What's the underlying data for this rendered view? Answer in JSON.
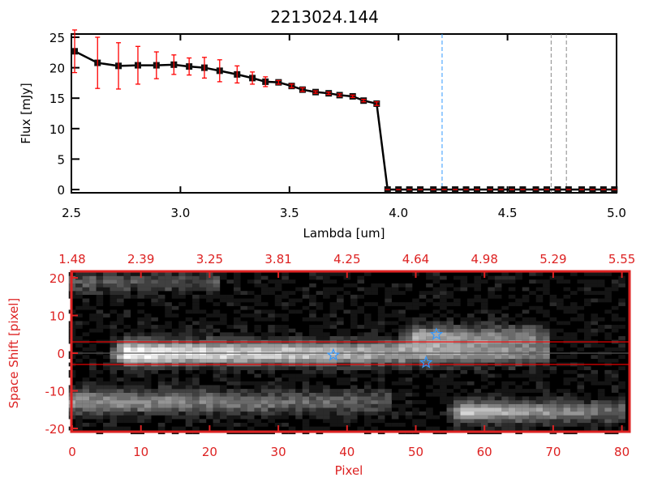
{
  "chart_data": [
    {
      "type": "line",
      "title": "2213024.144",
      "xlabel": "Lambda [um]",
      "ylabel": "Flux [mJy]",
      "xlim": [
        2.5,
        5.0
      ],
      "ylim": [
        -1,
        26
      ],
      "xticks": [
        "2.5",
        "3.0",
        "3.5",
        "4.0",
        "4.5",
        "5.0"
      ],
      "xtick_values": [
        2.5,
        3.0,
        3.5,
        4.0,
        4.5,
        5.0
      ],
      "yticks": [
        "0",
        "5",
        "10",
        "15",
        "20",
        "25"
      ],
      "ytick_values": [
        0,
        5,
        10,
        15,
        20,
        25
      ],
      "series": [
        {
          "name": "flux",
          "x": [
            2.515,
            2.62,
            2.716,
            2.805,
            2.89,
            2.97,
            3.04,
            3.11,
            3.18,
            3.26,
            3.33,
            3.39,
            3.45,
            3.51,
            3.56,
            3.62,
            3.68,
            3.73,
            3.79,
            3.84,
            3.9,
            3.95,
            4.0,
            4.05,
            4.1,
            4.16,
            4.21,
            4.26,
            4.31,
            4.36,
            4.42,
            4.47,
            4.52,
            4.57,
            4.63,
            4.68,
            4.73,
            4.78,
            4.84,
            4.89,
            4.94,
            4.99
          ],
          "y": [
            22.7,
            20.8,
            20.3,
            20.4,
            20.4,
            20.5,
            20.2,
            20.0,
            19.5,
            18.9,
            18.3,
            17.7,
            17.6,
            17.0,
            16.4,
            16.0,
            15.8,
            15.5,
            15.3,
            14.6,
            14.1,
            0,
            0,
            0,
            0,
            0,
            0,
            0,
            0,
            0,
            0,
            0,
            0,
            0,
            0,
            0,
            0,
            0,
            0,
            0,
            0,
            0
          ],
          "err": [
            3.5,
            4.2,
            3.8,
            3.1,
            2.2,
            1.6,
            1.4,
            1.7,
            1.8,
            1.4,
            1.0,
            0.8,
            0.3,
            0.3,
            0.3,
            0.2,
            0.2,
            0.2,
            0.2,
            0.2,
            0.3,
            0,
            0,
            0,
            0,
            0,
            0,
            0,
            0,
            0,
            0,
            0,
            0,
            0,
            0,
            0,
            0,
            0,
            0,
            0,
            0,
            0
          ]
        }
      ],
      "vlines": [
        {
          "x": 4.2,
          "color": "#3399ff",
          "style": "dashed"
        },
        {
          "x": 4.7,
          "color": "#888888",
          "style": "dashed"
        },
        {
          "x": 4.77,
          "color": "#888888",
          "style": "dashed"
        }
      ],
      "hline": {
        "y": 0,
        "from": 4.0,
        "to": 5.0,
        "color": "#ff0000",
        "style": "dashed"
      }
    },
    {
      "type": "heatmap",
      "xlabel": "Pixel",
      "ylabel": "Space Shift [pixel]",
      "xlim": [
        0,
        81
      ],
      "ylim": [
        -21,
        21
      ],
      "xticks": [
        "0",
        "10",
        "20",
        "30",
        "40",
        "50",
        "60",
        "70",
        "80"
      ],
      "xtick_values": [
        0,
        10,
        20,
        30,
        40,
        50,
        60,
        70,
        80
      ],
      "yticks": [
        "20",
        "10",
        "0",
        "-10",
        "-20"
      ],
      "ytick_values": [
        20,
        10,
        0,
        -10,
        -20
      ],
      "top_axis_labels": [
        "1.48",
        "2.39",
        "3.25",
        "3.81",
        "4.25",
        "4.64",
        "4.98",
        "5.29",
        "5.55"
      ],
      "sources": [
        {
          "x0": 8,
          "x1": 68,
          "y": 0,
          "peak": 1.0,
          "tail": 0.45,
          "sigma": 2.2
        },
        {
          "x0": 50,
          "x1": 68,
          "y": 4.5,
          "peak": 0.55,
          "tail": 0.35,
          "sigma": 2.0
        },
        {
          "x0": 0,
          "x1": 45,
          "y": -13,
          "peak": 0.55,
          "tail": 0.3,
          "sigma": 2.2
        },
        {
          "x0": 57,
          "x1": 81,
          "y": -15.5,
          "peak": 0.75,
          "tail": 0.35,
          "sigma": 2.0
        },
        {
          "x0": 0,
          "x1": 20,
          "y": 19,
          "peak": 0.3,
          "tail": 0.25,
          "sigma": 2.0
        }
      ],
      "hlines": [
        {
          "y": 3,
          "color": "#ff0000"
        },
        {
          "y": -3,
          "color": "#ff0000"
        },
        {
          "y": 0,
          "color": "#555555"
        }
      ],
      "stars": [
        {
          "x": 38,
          "y": -0.5
        },
        {
          "x": 53,
          "y": 5
        },
        {
          "x": 51.5,
          "y": -2.5
        }
      ],
      "axis_color": "#dd2222",
      "star_color": "#3399ff"
    }
  ]
}
